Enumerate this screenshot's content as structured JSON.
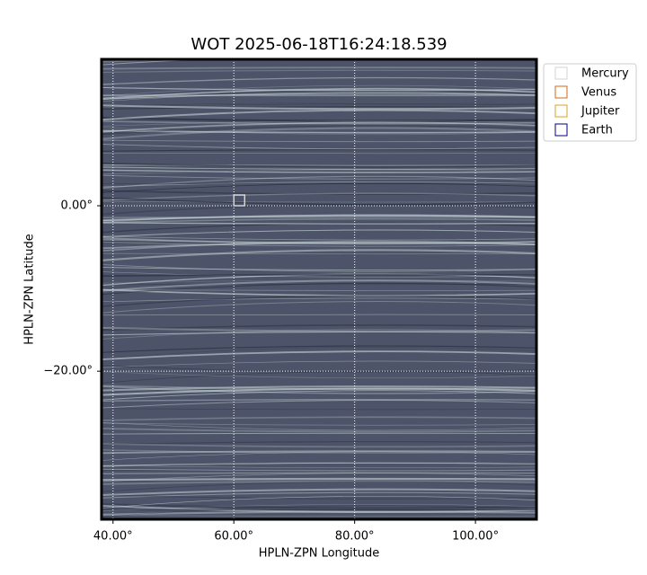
{
  "chart_data": {
    "type": "image",
    "title": "WOT 2025-06-18T16:24:18.539",
    "x_label": "HPLN-ZPN Longitude",
    "y_label": "HPLN-ZPN Latitude",
    "xlim": [
      38.1,
      110.1
    ],
    "ylim": [
      -37.9,
      17.7
    ],
    "xticks": [
      {
        "value": 40,
        "label": "40.00°"
      },
      {
        "value": 60,
        "label": "60.00°"
      },
      {
        "value": 80,
        "label": "80.00°"
      },
      {
        "value": 100,
        "label": "100.00°"
      }
    ],
    "yticks": [
      {
        "value": -20,
        "label": "−20.00°"
      },
      {
        "value": 0,
        "label": "0.00°"
      }
    ],
    "grid": true,
    "legend": "upper right",
    "series": [
      {
        "name": "Mercury",
        "color": "#d3d3d3",
        "x": [
          60.9
        ],
        "y": [
          0.65
        ]
      },
      {
        "name": "Venus",
        "color": "#d2691e",
        "x": [],
        "y": []
      },
      {
        "name": "Jupiter",
        "color": "#daa520",
        "x": [],
        "y": []
      },
      {
        "name": "Earth",
        "color": "#000080",
        "x": [],
        "y": []
      }
    ]
  }
}
